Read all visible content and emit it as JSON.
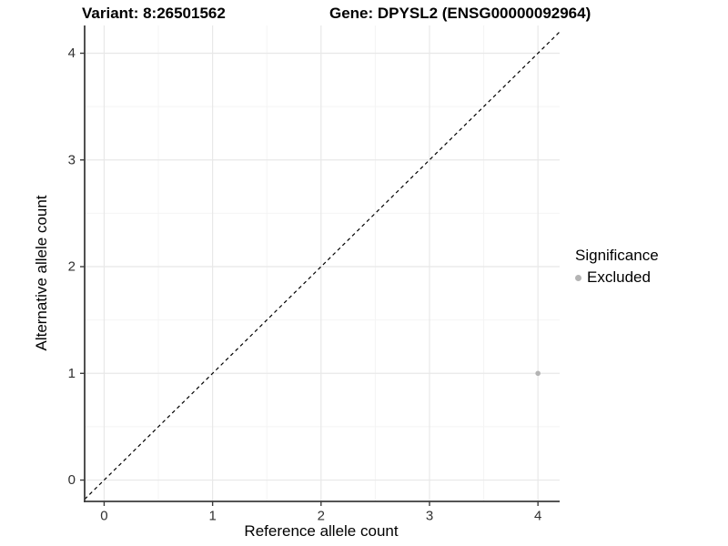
{
  "chart_data": {
    "type": "scatter",
    "title_left": "Variant: 8:26501562",
    "title_right": "Gene: DPYSL2 (ENSG00000092964)",
    "xlabel": "Reference allele count",
    "ylabel": "Alternative allele count",
    "xlim": [
      -0.18,
      4.2
    ],
    "ylim": [
      -0.2,
      4.26
    ],
    "xticks": [
      0,
      1,
      2,
      3,
      4
    ],
    "yticks": [
      0,
      1,
      2,
      3,
      4
    ],
    "xticks_minor": [
      0.5,
      1.5,
      2.5,
      3.5
    ],
    "yticks_minor": [
      0.5,
      1.5,
      2.5,
      3.5
    ],
    "grid": true,
    "legend_position": "right",
    "points": [
      {
        "x": 4,
        "y": 1,
        "series": "Excluded"
      }
    ],
    "reference_line": {
      "slope": 1,
      "intercept": 0,
      "style": "dashed"
    },
    "legend": {
      "title": "Significance",
      "items": [
        {
          "label": "Excluded",
          "color": "#b4b4b4"
        }
      ]
    },
    "colors": {
      "point": "#b4b4b4",
      "grid_major": "#e8e8e8",
      "grid_minor": "#f4f4f4",
      "axis_line": "#3c3c3c",
      "tick_text": "#303030",
      "reference_line": "#000000",
      "background": "#ffffff"
    }
  }
}
